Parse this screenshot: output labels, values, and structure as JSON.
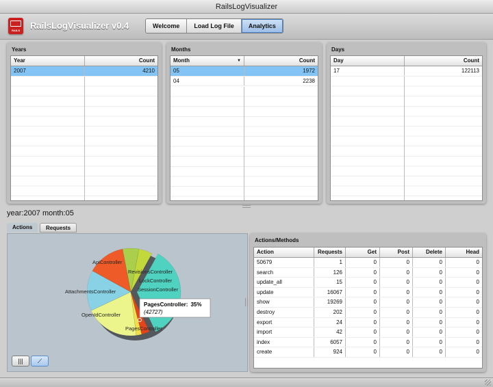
{
  "window": {
    "title": "RailsLogVisualizer"
  },
  "app": {
    "title": "RailsLogVisualizer v0.4",
    "logo_label": "RAILS"
  },
  "nav": [
    {
      "label": "Welcome",
      "active": false
    },
    {
      "label": "Load Log File",
      "active": false
    },
    {
      "label": "Analytics",
      "active": true
    }
  ],
  "years": {
    "title": "Years",
    "columns": [
      "Year",
      "Count"
    ],
    "rows": [
      {
        "a": "2007",
        "b": "4210",
        "selected": true
      }
    ]
  },
  "months": {
    "title": "Months",
    "columns": [
      "Month",
      "Count"
    ],
    "rows": [
      {
        "a": "05",
        "b": "1972",
        "selected": true
      },
      {
        "a": "04",
        "b": "2238",
        "selected": false
      }
    ]
  },
  "days": {
    "title": "Days",
    "columns": [
      "Day",
      "Count"
    ],
    "rows": [
      {
        "a": "17",
        "b": "122113",
        "selected": false
      }
    ]
  },
  "selection_info": "year:2007 month:05",
  "subtabs": [
    {
      "label": "Actions",
      "active": true
    },
    {
      "label": "Requests",
      "active": false
    }
  ],
  "chart_data": {
    "type": "pie",
    "title": "",
    "slices": [
      {
        "label": "PagesController",
        "percent": 35,
        "value": 42727,
        "color": "#4fd2c0"
      },
      {
        "label": "OpenIdController",
        "percent": 3,
        "color": "#e2451c"
      },
      {
        "label": "",
        "percent": 2,
        "color": "#f0df4a"
      },
      {
        "label": "AttachmentsController",
        "percent": 20,
        "color": "#ecf58c"
      },
      {
        "label": "ApiController",
        "percent": 15,
        "color": "#89d2e6"
      },
      {
        "label": "RevisionsController",
        "percent": 14,
        "color": "#ef5b28"
      },
      {
        "label": "LockController",
        "percent": 6,
        "color": "#a9cf4c"
      },
      {
        "label": "SessionController",
        "percent": 5,
        "color": "#c3d83a"
      }
    ],
    "tooltip": {
      "label": "PagesController:",
      "percent": "35%",
      "value": "(42727)"
    }
  },
  "actions": {
    "title": "Actions/Methods",
    "columns": [
      "Action",
      "Requests",
      "Get",
      "Post",
      "Delete",
      "Head"
    ],
    "rows": [
      [
        "50679",
        "1",
        "0",
        "0",
        "0",
        "0"
      ],
      [
        "search",
        "126",
        "0",
        "0",
        "0",
        "0"
      ],
      [
        "update_all",
        "15",
        "0",
        "0",
        "0",
        "0"
      ],
      [
        "update",
        "16067",
        "0",
        "0",
        "0",
        "0"
      ],
      [
        "show",
        "19269",
        "0",
        "0",
        "0",
        "0"
      ],
      [
        "destroy",
        "202",
        "0",
        "0",
        "0",
        "0"
      ],
      [
        "export",
        "24",
        "0",
        "0",
        "0",
        "0"
      ],
      [
        "import",
        "42",
        "0",
        "0",
        "0",
        "0"
      ],
      [
        "index",
        "6057",
        "0",
        "0",
        "0",
        "0"
      ],
      [
        "create",
        "924",
        "0",
        "0",
        "0",
        "0"
      ]
    ]
  },
  "view_buttons": [
    {
      "icon": "bar-chart-icon",
      "glyph": "|||",
      "active": false
    },
    {
      "icon": "line-chart-icon",
      "glyph": "⟋",
      "active": true
    }
  ]
}
